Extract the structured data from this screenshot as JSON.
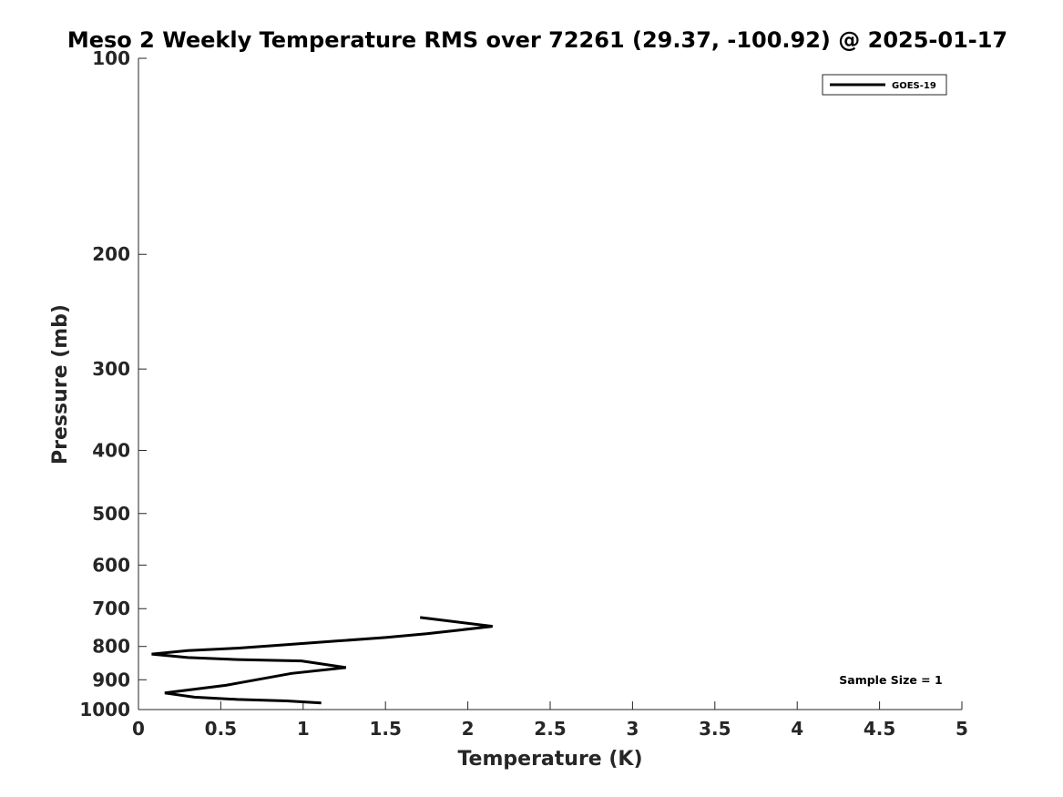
{
  "chart_data": {
    "type": "line",
    "title": "Meso 2 Weekly Temperature RMS over 72261 (29.37, -100.92) @ 2025-01-17",
    "xlabel": "Temperature (K)",
    "ylabel": "Pressure (mb)",
    "xlim": [
      0,
      5
    ],
    "ylim": [
      1000,
      100
    ],
    "yscale": "log",
    "y_inverted": true,
    "grid": false,
    "xticks": [
      0,
      0.5,
      1,
      1.5,
      2,
      2.5,
      3,
      3.5,
      4,
      4.5,
      5
    ],
    "xtick_labels": [
      "0",
      "0.5",
      "1",
      "1.5",
      "2",
      "2.5",
      "3",
      "3.5",
      "4",
      "4.5",
      "5"
    ],
    "yticks": [
      100,
      200,
      300,
      400,
      500,
      600,
      700,
      800,
      900,
      1000
    ],
    "ytick_labels": [
      "100",
      "200",
      "300",
      "400",
      "500",
      "600",
      "700",
      "800",
      "900",
      "1000"
    ],
    "legend_position": "top-right",
    "series": [
      {
        "name": "GOES-19",
        "color": "#000000",
        "x": [
          1.71,
          2.15,
          1.95,
          1.75,
          1.5,
          1.2,
          0.9,
          0.6,
          0.3,
          0.08,
          0.3,
          0.6,
          0.99,
          1.26,
          0.93,
          0.75,
          0.53,
          0.16,
          0.34,
          0.6,
          0.9,
          1.11
        ],
        "y": [
          722,
          745,
          755,
          765,
          775,
          785,
          795,
          805,
          812,
          822,
          832,
          838,
          842,
          862,
          880,
          897,
          918,
          943,
          957,
          965,
          970,
          977
        ]
      }
    ],
    "annotation": "Sample Size = 1"
  }
}
